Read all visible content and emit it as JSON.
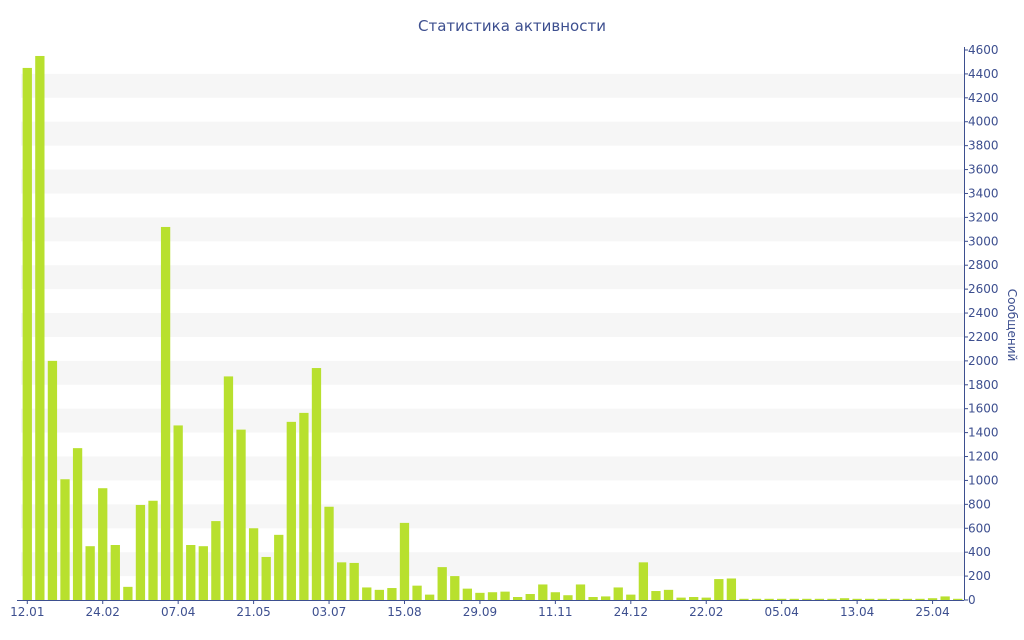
{
  "chart_data": {
    "type": "bar",
    "title": "Статистика активности",
    "xlabel": "",
    "ylabel": "Сообщений",
    "ylim": [
      0,
      4600
    ],
    "y_ticks": [
      0,
      200,
      400,
      600,
      800,
      1000,
      1200,
      1400,
      1600,
      1800,
      2000,
      2200,
      2400,
      2600,
      2800,
      3000,
      3200,
      3400,
      3600,
      3800,
      4000,
      4200,
      4400,
      4600
    ],
    "x_tick_labels": [
      {
        "label": "12.01",
        "bar_index": 0
      },
      {
        "label": "24.02",
        "bar_index": 6
      },
      {
        "label": "07.04",
        "bar_index": 12
      },
      {
        "label": "21.05",
        "bar_index": 18
      },
      {
        "label": "03.07",
        "bar_index": 24
      },
      {
        "label": "15.08",
        "bar_index": 30
      },
      {
        "label": "29.09",
        "bar_index": 36
      },
      {
        "label": "11.11",
        "bar_index": 42
      },
      {
        "label": "24.12",
        "bar_index": 48
      },
      {
        "label": "22.02",
        "bar_index": 54
      },
      {
        "label": "05.04",
        "bar_index": 60
      },
      {
        "label": "13.04",
        "bar_index": 66
      },
      {
        "label": "25.04",
        "bar_index": 72
      }
    ],
    "values": [
      4450,
      4550,
      2000,
      1010,
      1270,
      450,
      935,
      460,
      110,
      795,
      830,
      3120,
      1460,
      460,
      450,
      660,
      1870,
      1425,
      600,
      360,
      545,
      1490,
      1565,
      1940,
      780,
      315,
      310,
      105,
      85,
      100,
      645,
      120,
      45,
      275,
      200,
      95,
      60,
      65,
      70,
      25,
      50,
      130,
      65,
      40,
      130,
      25,
      30,
      105,
      45,
      315,
      75,
      85,
      20,
      25,
      20,
      175,
      180,
      10,
      10,
      10,
      10,
      10,
      10,
      10,
      10,
      15,
      10,
      10,
      10,
      10,
      10,
      10,
      15,
      30,
      10
    ],
    "colors": {
      "bar": "#b8e02e",
      "band": "#f6f6f6",
      "text": "#3d4f8f",
      "axis": "#3d4f8f"
    },
    "grid": "alternating horizontal bands"
  }
}
